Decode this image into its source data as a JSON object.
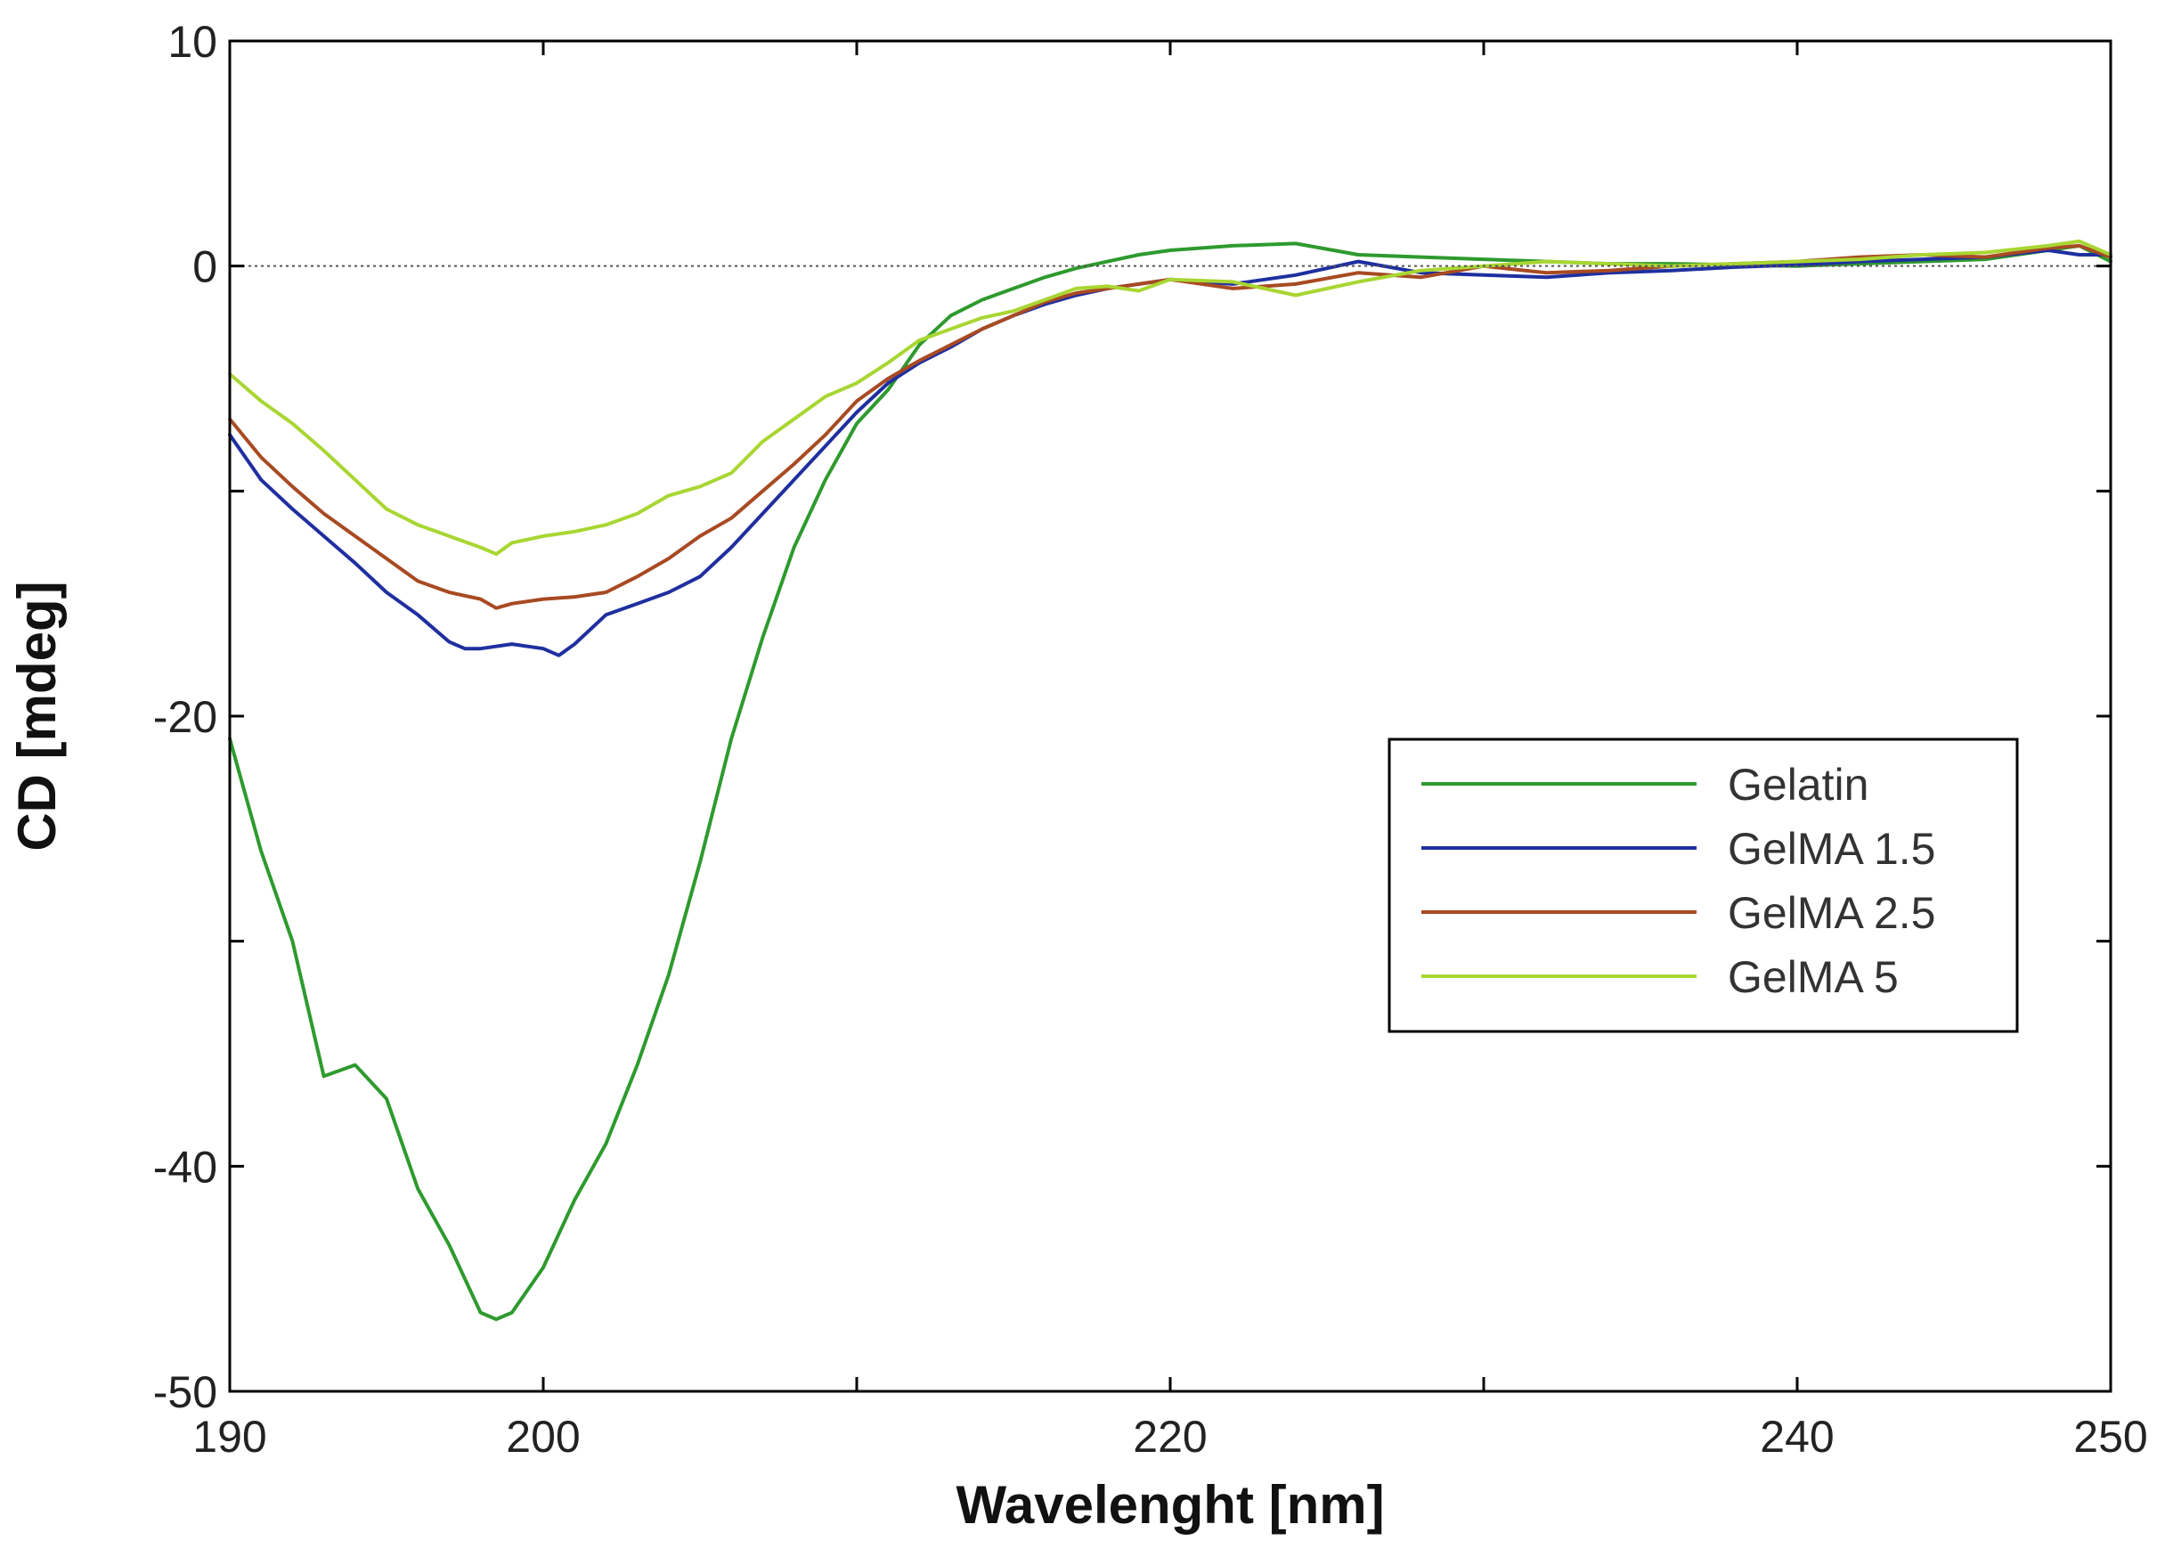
{
  "chart_data": {
    "type": "line",
    "title": "",
    "xlabel": "Wavelenght [nm]",
    "ylabel": "CD [mdeg]",
    "xlim": [
      190,
      250
    ],
    "ylim": [
      -50,
      10
    ],
    "x_tick_labels": [
      190,
      200,
      220,
      240,
      250
    ],
    "x_minor_ticks": [
      210,
      230
    ],
    "y_tick_labels": [
      10,
      0,
      -20,
      -40,
      -50
    ],
    "y_minor_ticks": [
      -10,
      -30
    ],
    "zero_reference_line": true,
    "grid": false,
    "legend_position": "center-right",
    "series": [
      {
        "name": "Gelatin",
        "color": "#2e9a2e",
        "x": [
          190,
          191,
          192,
          193,
          194,
          195,
          196,
          197,
          197.5,
          198,
          198.5,
          199,
          200,
          201,
          202,
          203,
          204,
          205,
          206,
          207,
          208,
          209,
          210,
          211,
          212,
          213,
          214,
          215,
          216,
          217,
          218,
          219,
          220,
          222,
          224,
          226,
          228,
          230,
          232,
          234,
          236,
          238,
          240,
          242,
          244,
          246,
          248,
          249,
          250
        ],
        "y": [
          -21,
          -26,
          -30,
          -36,
          -35.5,
          -37,
          -41,
          -43.5,
          -45,
          -46.5,
          -46.8,
          -46.5,
          -44.5,
          -41.5,
          -39,
          -35.5,
          -31.5,
          -26.5,
          -21,
          -16.5,
          -12.5,
          -9.5,
          -7,
          -5.5,
          -3.5,
          -2.2,
          -1.5,
          -1,
          -0.5,
          -0.1,
          0.2,
          0.5,
          0.7,
          0.9,
          1,
          0.5,
          0.4,
          0.3,
          0.2,
          0.1,
          0.1,
          0.05,
          0,
          0.1,
          0.2,
          0.3,
          0.7,
          0.9,
          0.2
        ]
      },
      {
        "name": "GelMA 1.5",
        "color": "#1f2fa0",
        "x": [
          190,
          191,
          192,
          193,
          194,
          195,
          196,
          197,
          197.5,
          198,
          199,
          200,
          200.5,
          201,
          202,
          203,
          204,
          205,
          206,
          207,
          208,
          209,
          210,
          211,
          212,
          213,
          214,
          215,
          216,
          217,
          218,
          219,
          220,
          222,
          224,
          226,
          228,
          230,
          232,
          234,
          236,
          238,
          240,
          242,
          244,
          246,
          248,
          249,
          250
        ],
        "y": [
          -7.5,
          -9.5,
          -10.8,
          -12,
          -13.2,
          -14.5,
          -15.5,
          -16.7,
          -17,
          -17,
          -16.8,
          -17,
          -17.3,
          -16.8,
          -15.5,
          -15,
          -14.5,
          -13.8,
          -12.5,
          -11,
          -9.5,
          -8,
          -6.5,
          -5.2,
          -4.3,
          -3.6,
          -2.8,
          -2.2,
          -1.7,
          -1.3,
          -1,
          -0.8,
          -0.6,
          -0.8,
          -0.4,
          0.2,
          -0.3,
          -0.4,
          -0.5,
          -0.3,
          -0.2,
          -0.05,
          0.05,
          0.2,
          0.3,
          0.4,
          0.7,
          0.5,
          0.5
        ]
      },
      {
        "name": "GelMA 2.5",
        "color": "#a84a22",
        "x": [
          190,
          191,
          192,
          193,
          194,
          195,
          196,
          197,
          198,
          198.5,
          199,
          200,
          201,
          202,
          203,
          204,
          205,
          206,
          207,
          208,
          209,
          210,
          211,
          212,
          213,
          214,
          215,
          216,
          217,
          218,
          219,
          220,
          222,
          224,
          226,
          228,
          230,
          232,
          234,
          236,
          238,
          240,
          242,
          244,
          246,
          248,
          249,
          250
        ],
        "y": [
          -6.8,
          -8.5,
          -9.8,
          -11,
          -12,
          -13,
          -14,
          -14.5,
          -14.8,
          -15.2,
          -15,
          -14.8,
          -14.7,
          -14.5,
          -13.8,
          -13,
          -12,
          -11.2,
          -10,
          -8.8,
          -7.5,
          -6,
          -5,
          -4.2,
          -3.5,
          -2.8,
          -2.2,
          -1.6,
          -1.2,
          -1,
          -0.8,
          -0.6,
          -1,
          -0.8,
          -0.3,
          -0.5,
          0,
          -0.3,
          -0.2,
          0,
          0.1,
          0.2,
          0.4,
          0.5,
          0.4,
          0.8,
          0.9,
          0.4
        ]
      },
      {
        "name": "GelMA 5",
        "color": "#a8d632",
        "x": [
          190,
          191,
          192,
          193,
          194,
          195,
          196,
          197,
          198,
          198.5,
          199,
          200,
          201,
          202,
          203,
          204,
          205,
          206,
          207,
          208,
          209,
          210,
          211,
          212,
          213,
          214,
          215,
          216,
          217,
          218,
          219,
          220,
          222,
          224,
          226,
          228,
          230,
          232,
          234,
          236,
          238,
          240,
          242,
          244,
          246,
          248,
          249,
          250
        ],
        "y": [
          -4.8,
          -6,
          -7,
          -8.2,
          -9.5,
          -10.8,
          -11.5,
          -12,
          -12.5,
          -12.8,
          -12.3,
          -12,
          -11.8,
          -11.5,
          -11,
          -10.2,
          -9.8,
          -9.2,
          -7.8,
          -6.8,
          -5.8,
          -5.2,
          -4.3,
          -3.3,
          -2.8,
          -2.3,
          -2,
          -1.5,
          -1,
          -0.9,
          -1.1,
          -0.6,
          -0.7,
          -1.3,
          -0.7,
          -0.2,
          0,
          0.2,
          0.1,
          0,
          0.1,
          0.2,
          0.3,
          0.5,
          0.6,
          0.9,
          1.1,
          0.5
        ]
      }
    ]
  }
}
